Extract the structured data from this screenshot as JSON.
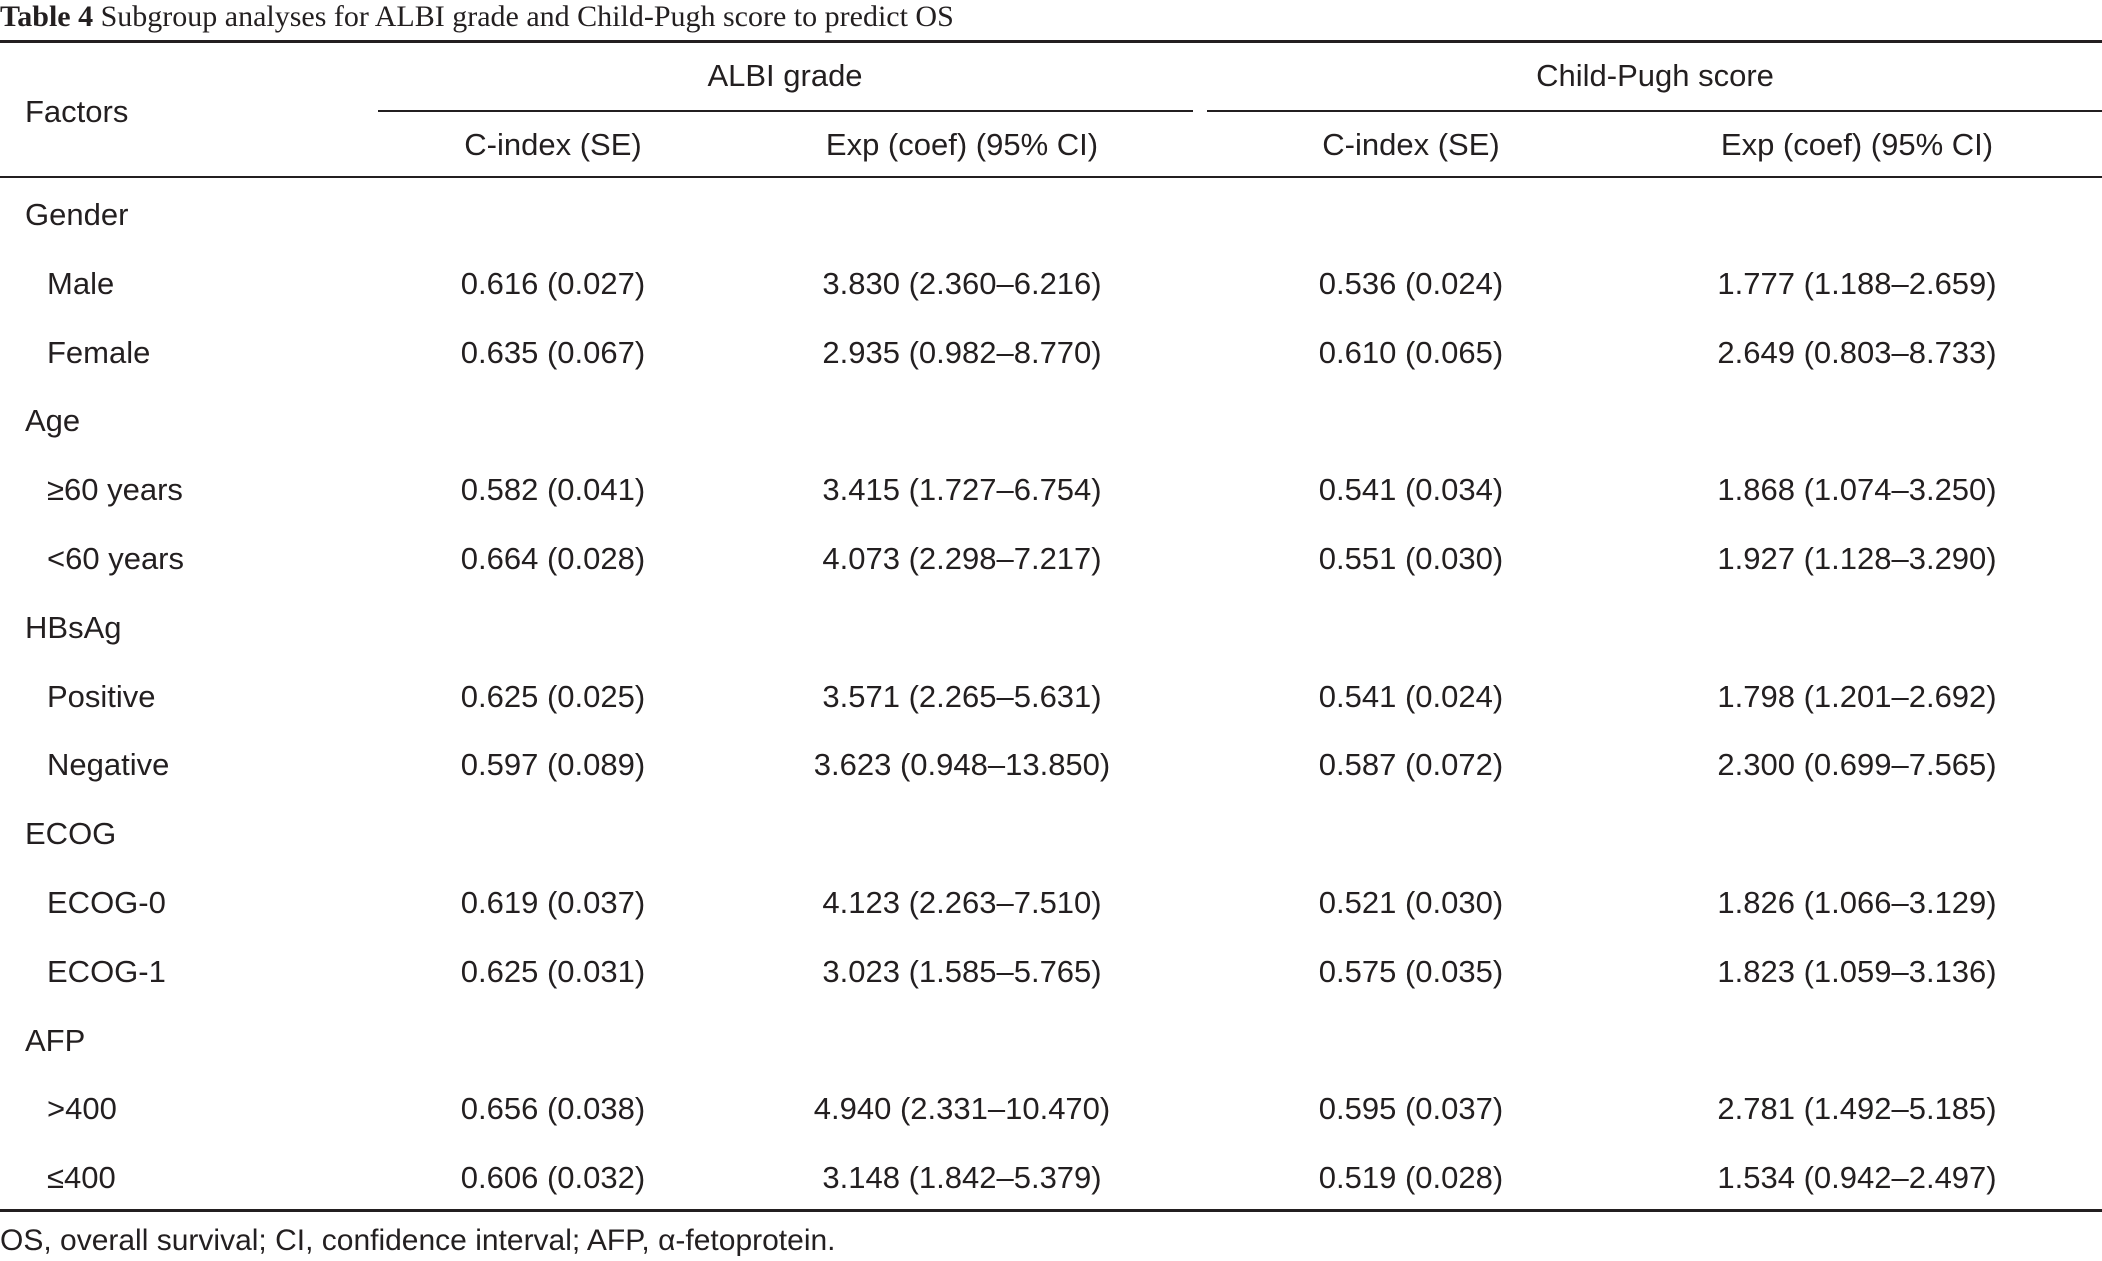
{
  "caption": {
    "label": "Table 4",
    "text": "Subgroup analyses for ALBI grade and Child-Pugh score to predict OS"
  },
  "table": {
    "factors_header": "Factors",
    "groups": [
      "ALBI grade",
      "Child-Pugh score"
    ],
    "subheaders": [
      "C-index (SE)",
      "Exp (coef) (95% CI)",
      "C-index (SE)",
      "Exp (coef) (95% CI)"
    ],
    "rows": [
      {
        "kind": "group",
        "label": "Gender"
      },
      {
        "kind": "data",
        "label": "Male",
        "values": [
          "0.616 (0.027)",
          "3.830 (2.360–6.216)",
          "0.536 (0.024)",
          "1.777 (1.188–2.659)"
        ]
      },
      {
        "kind": "data",
        "label": "Female",
        "values": [
          "0.635 (0.067)",
          "2.935 (0.982–8.770)",
          "0.610 (0.065)",
          "2.649 (0.803–8.733)"
        ]
      },
      {
        "kind": "group",
        "label": "Age"
      },
      {
        "kind": "data",
        "label": "≥60 years",
        "values": [
          "0.582 (0.041)",
          "3.415 (1.727–6.754)",
          "0.541 (0.034)",
          "1.868 (1.074–3.250)"
        ]
      },
      {
        "kind": "data",
        "label": "<60 years",
        "values": [
          "0.664 (0.028)",
          "4.073 (2.298–7.217)",
          "0.551 (0.030)",
          "1.927 (1.128–3.290)"
        ]
      },
      {
        "kind": "group",
        "label": "HBsAg"
      },
      {
        "kind": "data",
        "label": "Positive",
        "values": [
          "0.625 (0.025)",
          "3.571 (2.265–5.631)",
          "0.541 (0.024)",
          "1.798 (1.201–2.692)"
        ]
      },
      {
        "kind": "data",
        "label": "Negative",
        "values": [
          "0.597 (0.089)",
          "3.623 (0.948–13.850)",
          "0.587 (0.072)",
          "2.300 (0.699–7.565)"
        ]
      },
      {
        "kind": "group",
        "label": "ECOG"
      },
      {
        "kind": "data",
        "label": "ECOG-0",
        "values": [
          "0.619 (0.037)",
          "4.123 (2.263–7.510)",
          "0.521 (0.030)",
          "1.826 (1.066–3.129)"
        ]
      },
      {
        "kind": "data",
        "label": "ECOG-1",
        "values": [
          "0.625 (0.031)",
          "3.023 (1.585–5.765)",
          "0.575 (0.035)",
          "1.823 (1.059–3.136)"
        ]
      },
      {
        "kind": "group",
        "label": "AFP"
      },
      {
        "kind": "data",
        "label": ">400",
        "values": [
          "0.656 (0.038)",
          "4.940 (2.331–10.470)",
          "0.595 (0.037)",
          "2.781 (1.492–5.185)"
        ]
      },
      {
        "kind": "data",
        "label": "≤400",
        "values": [
          "0.606 (0.032)",
          "3.148 (1.842–5.379)",
          "0.519 (0.028)",
          "1.534 (0.942–2.497)"
        ]
      }
    ]
  },
  "footnote": "OS, overall survival; CI, confidence interval; AFP, α-fetoprotein."
}
